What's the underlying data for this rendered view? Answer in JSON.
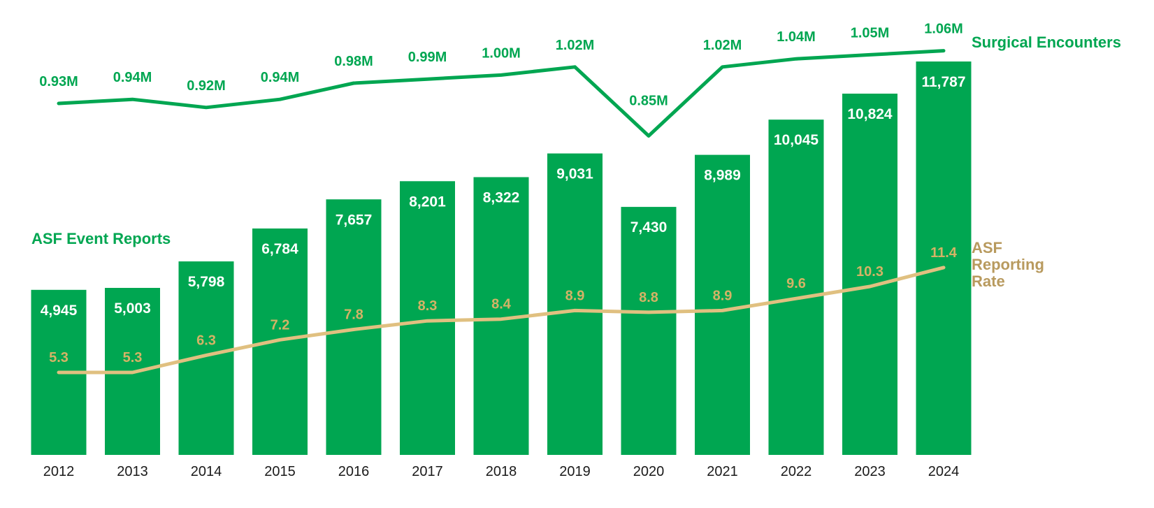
{
  "chart_data": {
    "type": "bar",
    "categories": [
      "2012",
      "2013",
      "2014",
      "2015",
      "2016",
      "2017",
      "2018",
      "2019",
      "2020",
      "2021",
      "2022",
      "2023",
      "2024"
    ],
    "series": [
      {
        "name": "ASF Event Reports",
        "kind": "bar",
        "values": [
          4945,
          5003,
          5798,
          6784,
          7657,
          8201,
          8322,
          9031,
          7430,
          8989,
          10045,
          10824,
          11787
        ],
        "labels": [
          "4,945",
          "5,003",
          "5,798",
          "6,784",
          "7,657",
          "8,201",
          "8,322",
          "9,031",
          "7,430",
          "8,989",
          "10,045",
          "10,824",
          "11,787"
        ],
        "color": "#00A651"
      },
      {
        "name": "Surgical Encounters",
        "kind": "line",
        "values": [
          0.93,
          0.94,
          0.92,
          0.94,
          0.98,
          0.99,
          1.0,
          1.02,
          0.85,
          1.02,
          1.04,
          1.05,
          1.06
        ],
        "labels": [
          "0.93M",
          "0.94M",
          "0.92M",
          "0.94M",
          "0.98M",
          "0.99M",
          "1.00M",
          "1.02M",
          "0.85M",
          "1.02M",
          "1.04M",
          "1.05M",
          "1.06M"
        ],
        "unit": "M",
        "color": "#00A651"
      },
      {
        "name": "ASF Reporting Rate",
        "kind": "line",
        "values": [
          5.3,
          5.3,
          6.3,
          7.2,
          7.8,
          8.3,
          8.4,
          8.9,
          8.8,
          8.9,
          9.6,
          10.3,
          11.4
        ],
        "labels": [
          "5.3",
          "5.3",
          "6.3",
          "7.2",
          "7.8",
          "8.3",
          "8.4",
          "8.9",
          "8.8",
          "8.9",
          "9.6",
          "10.3",
          "11.4"
        ],
        "color": "#E0C080",
        "label_color": "#D4B366",
        "title_color": "#B89A5E"
      }
    ],
    "series_titles": {
      "bars": "ASF Event Reports",
      "encounters": "Surgical Encounters",
      "rate_lines": [
        "ASF",
        "Reporting",
        "Rate"
      ]
    },
    "grid": false,
    "legend": "inline"
  }
}
